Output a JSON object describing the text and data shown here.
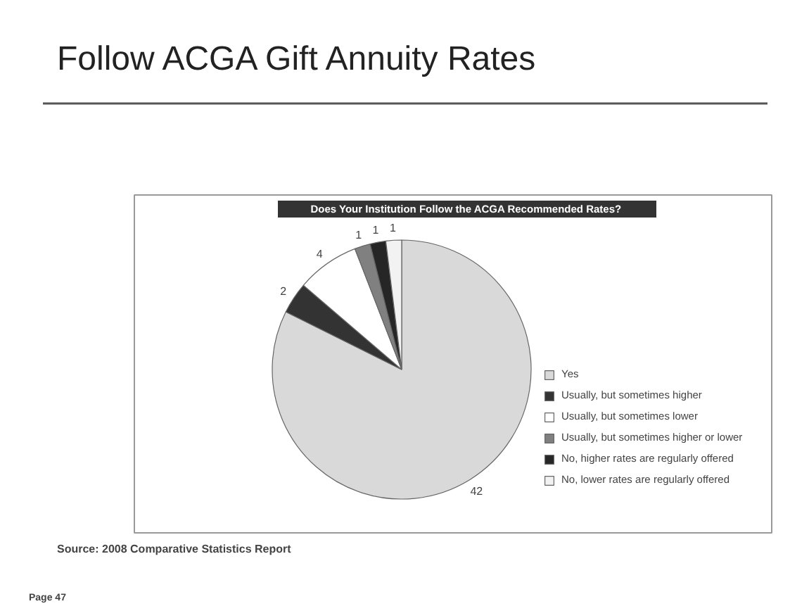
{
  "chart_data": {
    "type": "pie",
    "title": "Follow ACGA Gift Annuity Rates",
    "subtitle": "Does Your Institution Follow the ACGA Recommended Rates?",
    "categories": [
      "Yes",
      "Usually, but sometimes higher",
      "Usually, but sometimes lower",
      "Usually, but sometimes higher or lower",
      "No, higher rates are regularly offered",
      "No, lower rates are regularly offered"
    ],
    "values": [
      42,
      2,
      4,
      1,
      1,
      1
    ],
    "colors": [
      "#d9d9d9",
      "#333333",
      "#ffffff",
      "#808080",
      "#262626",
      "#f2f2f2"
    ],
    "data_labels": true,
    "legend": "right",
    "annotations": [
      "Source: 2008 Comparative Statistics Report",
      "Page 47"
    ]
  }
}
